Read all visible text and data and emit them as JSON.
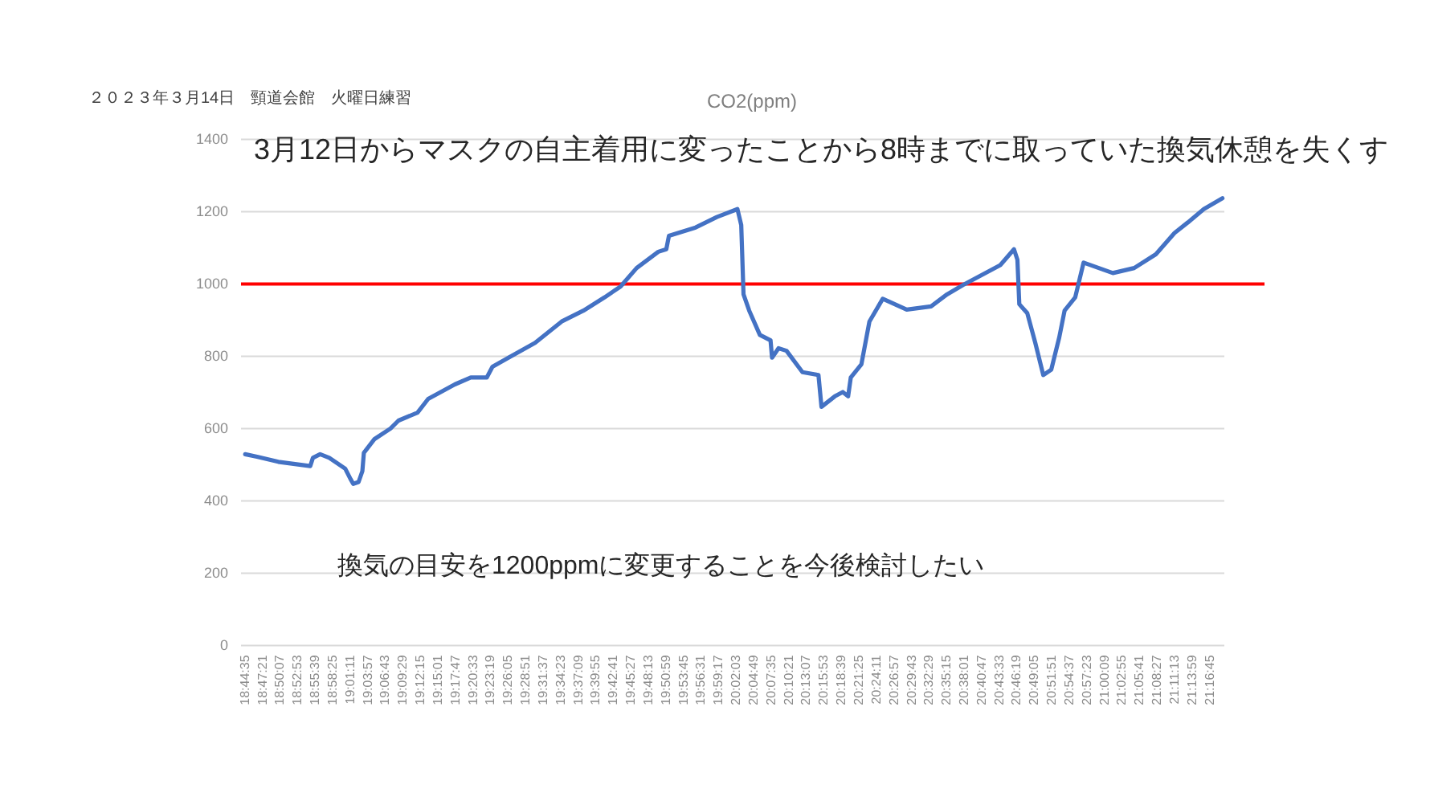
{
  "chart_data": {
    "type": "line",
    "title": "CO2(ppm)",
    "annotations": [
      "２０２３年３月14日　頸道会館　火曜日練習",
      "3月12日からマスクの自主着用に変ったことから8時までに取っていた換気休憩を失くす",
      "換気の目安を1200ppmに変更することを今後検討したい"
    ],
    "series": [
      {
        "color": "#4472c4",
        "x": [
          18.746,
          18.777,
          18.833,
          18.917,
          18.924,
          18.943,
          18.967,
          18.988,
          19.009,
          19.023,
          19.03,
          19.044,
          19.054,
          19.058,
          19.086,
          19.128,
          19.149,
          19.199,
          19.227,
          19.297,
          19.339,
          19.381,
          19.396,
          19.438,
          19.508,
          19.578,
          19.635,
          19.691,
          19.733,
          19.775,
          19.832,
          19.853,
          19.86,
          19.93,
          19.986,
          20.04,
          20.05,
          20.056,
          20.071,
          20.099,
          20.127,
          20.131,
          20.148,
          20.169,
          20.211,
          20.253,
          20.261,
          20.296,
          20.317,
          20.331,
          20.338,
          20.366,
          20.387,
          20.422,
          20.485,
          20.549,
          20.591,
          20.633,
          20.731,
          20.767,
          20.776,
          20.781,
          20.802,
          20.823,
          20.844,
          20.865,
          20.886,
          20.9,
          20.928,
          20.95,
          21.027,
          21.083,
          21.14,
          21.189,
          21.224,
          21.266,
          21.315
        ],
        "values": [
          529,
          522,
          508,
          496,
          519,
          529,
          519,
          504,
          489,
          460,
          447,
          452,
          482,
          533,
          571,
          600,
          622,
          644,
          682,
          722,
          741,
          741,
          771,
          796,
          837,
          896,
          926,
          963,
          993,
          1044,
          1089,
          1096,
          1133,
          1156,
          1185,
          1207,
          1163,
          971,
          926,
          859,
          844,
          796,
          822,
          815,
          756,
          748,
          660,
          689,
          701,
          689,
          741,
          778,
          896,
          959,
          929,
          938,
          971,
          997,
          1052,
          1096,
          1067,
          944,
          919,
          837,
          748,
          763,
          852,
          926,
          963,
          1059,
          1030,
          1044,
          1082,
          1141,
          1170,
          1207,
          1237
        ]
      }
    ],
    "ref_lines": [
      {
        "axis": "y",
        "value": 1000,
        "color": "#ff0000"
      }
    ],
    "xlim": [
      18.735,
      21.32
    ],
    "xticks": [
      {
        "value": 18.7431,
        "label": "18:44:35"
      },
      {
        "value": 18.7892,
        "label": "18:47:21"
      },
      {
        "value": 18.8353,
        "label": "18:50:07"
      },
      {
        "value": 18.8814,
        "label": "18:52:53"
      },
      {
        "value": 18.9275,
        "label": "18:55:39"
      },
      {
        "value": 18.9736,
        "label": "18:58:25"
      },
      {
        "value": 19.0197,
        "label": "19:01:11"
      },
      {
        "value": 19.0658,
        "label": "19:03:57"
      },
      {
        "value": 19.1119,
        "label": "19:06:43"
      },
      {
        "value": 19.1581,
        "label": "19:09:29"
      },
      {
        "value": 19.2042,
        "label": "19:12:15"
      },
      {
        "value": 19.2503,
        "label": "19:15:01"
      },
      {
        "value": 19.2964,
        "label": "19:17:47"
      },
      {
        "value": 19.3425,
        "label": "19:20:33"
      },
      {
        "value": 19.3886,
        "label": "19:23:19"
      },
      {
        "value": 19.4347,
        "label": "19:26:05"
      },
      {
        "value": 19.4808,
        "label": "19:28:51"
      },
      {
        "value": 19.5269,
        "label": "19:31:37"
      },
      {
        "value": 19.5731,
        "label": "19:34:23"
      },
      {
        "value": 19.6192,
        "label": "19:37:09"
      },
      {
        "value": 19.6653,
        "label": "19:39:55"
      },
      {
        "value": 19.7114,
        "label": "19:42:41"
      },
      {
        "value": 19.7575,
        "label": "19:45:27"
      },
      {
        "value": 19.8036,
        "label": "19:48:13"
      },
      {
        "value": 19.8497,
        "label": "19:50:59"
      },
      {
        "value": 19.8958,
        "label": "19:53:45"
      },
      {
        "value": 19.9419,
        "label": "19:56:31"
      },
      {
        "value": 19.9881,
        "label": "19:59:17"
      },
      {
        "value": 20.0342,
        "label": "20:02:03"
      },
      {
        "value": 20.0803,
        "label": "20:04:49"
      },
      {
        "value": 20.1264,
        "label": "20:07:35"
      },
      {
        "value": 20.1725,
        "label": "20:10:21"
      },
      {
        "value": 20.2186,
        "label": "20:13:07"
      },
      {
        "value": 20.2647,
        "label": "20:15:53"
      },
      {
        "value": 20.3108,
        "label": "20:18:39"
      },
      {
        "value": 20.3569,
        "label": "20:21:25"
      },
      {
        "value": 20.4031,
        "label": "20:24:11"
      },
      {
        "value": 20.4492,
        "label": "20:26:57"
      },
      {
        "value": 20.4953,
        "label": "20:29:43"
      },
      {
        "value": 20.5414,
        "label": "20:32:29"
      },
      {
        "value": 20.5875,
        "label": "20:35:15"
      },
      {
        "value": 20.6336,
        "label": "20:38:01"
      },
      {
        "value": 20.6797,
        "label": "20:40:47"
      },
      {
        "value": 20.7258,
        "label": "20:43:33"
      },
      {
        "value": 20.7719,
        "label": "20:46:19"
      },
      {
        "value": 20.8181,
        "label": "20:49:05"
      },
      {
        "value": 20.8642,
        "label": "20:51:51"
      },
      {
        "value": 20.9103,
        "label": "20:54:37"
      },
      {
        "value": 20.9564,
        "label": "20:57:23"
      },
      {
        "value": 21.0025,
        "label": "21:00:09"
      },
      {
        "value": 21.0486,
        "label": "21:02:55"
      },
      {
        "value": 21.0947,
        "label": "21:05:41"
      },
      {
        "value": 21.1408,
        "label": "21:08:27"
      },
      {
        "value": 21.1869,
        "label": "21:11:13"
      },
      {
        "value": 21.2331,
        "label": "21:13:59"
      },
      {
        "value": 21.2792,
        "label": "21:16:45"
      }
    ],
    "ylim": [
      0,
      1400
    ],
    "yticks": [
      0,
      200,
      400,
      600,
      800,
      1000,
      1200,
      1400
    ],
    "grid": "y",
    "marker": "none",
    "line_style": "solid"
  }
}
